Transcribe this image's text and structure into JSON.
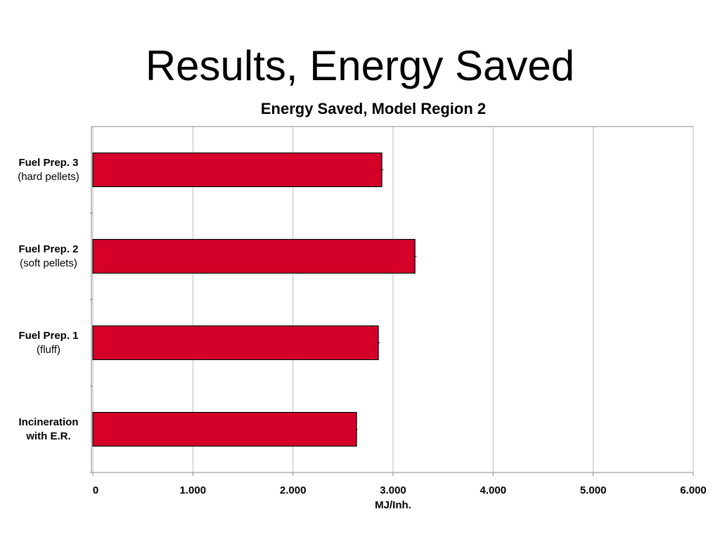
{
  "slide_title": "Results, Energy Saved",
  "chart_data": {
    "type": "hbar",
    "title": "Energy Saved, Model Region 2",
    "categories": [
      "Incineration with E.R.",
      "Fuel Prep. 1",
      "Fuel Prep. 2",
      "Fuel Prep. 3"
    ],
    "category_notes": [
      null,
      "(fluff)",
      "(soft pellets)",
      "(hard pellets)"
    ],
    "values": [
      2635,
      2853,
      3219,
      2888
    ],
    "errors": [
      10,
      15,
      15,
      15
    ],
    "color": "#d4002a",
    "x_label": "MJ/Inh.",
    "xlim": [
      0,
      6000
    ],
    "xticks": [
      0,
      {
        "value": 1000,
        "label": "1.000"
      },
      {
        "value": 2000,
        "label": "2.000"
      },
      {
        "value": 3000,
        "label": "3.000"
      },
      {
        "value": 4000,
        "label": "4.000"
      },
      {
        "value": 5000,
        "label": "5.000"
      },
      {
        "value": 6000,
        "label": "6.000"
      }
    ],
    "grid": true
  }
}
